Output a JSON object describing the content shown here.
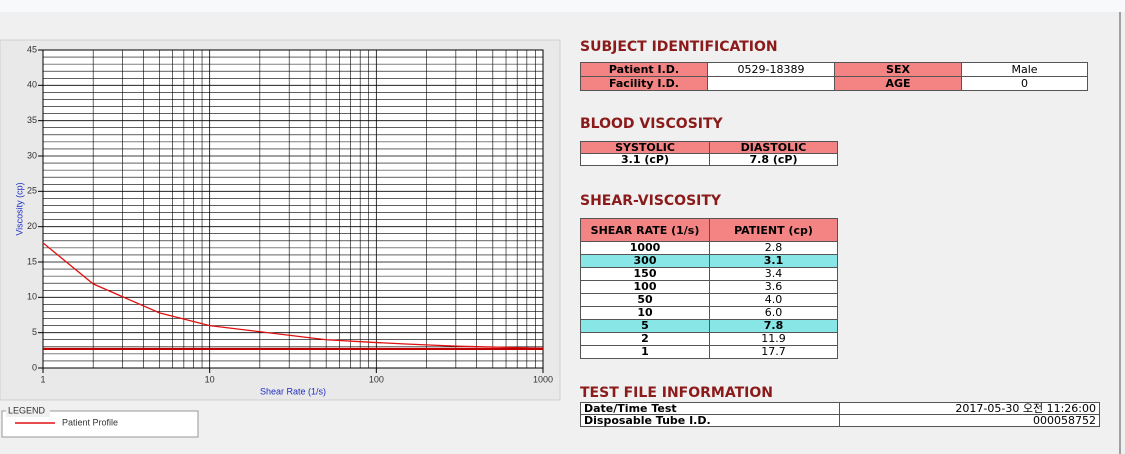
{
  "chart_data": {
    "type": "line",
    "xlabel": "Shear Rate (1/s)",
    "ylabel": "Viscosity (cp)",
    "xlog": true,
    "grid": true,
    "xlim": [
      1,
      1000
    ],
    "xticks": [
      1,
      10,
      100,
      1000
    ],
    "ylim": [
      0,
      45
    ],
    "yticks": [
      0,
      5,
      10,
      15,
      20,
      25,
      30,
      35,
      40,
      45
    ],
    "legend_title": "LEGEND",
    "series": [
      {
        "name": "Patient Profile",
        "color": "#e01010",
        "x": [
          1,
          2,
          5,
          10,
          50,
          100,
          150,
          300,
          1000
        ],
        "values": [
          17.7,
          11.9,
          7.8,
          6.0,
          4.0,
          3.6,
          3.4,
          3.1,
          2.8
        ]
      },
      {
        "color": "#c00000",
        "x": [
          1,
          1000
        ],
        "values": [
          2.7,
          2.7
        ]
      }
    ]
  },
  "subject_identification": {
    "title": "SUBJECT IDENTIFICATION",
    "fields": [
      {
        "label": "Patient I.D.",
        "value": "0529-18389"
      },
      {
        "label": "SEX",
        "value": "Male"
      },
      {
        "label": "Facility I.D."
      },
      {
        "label": "AGE",
        "value": "0"
      }
    ]
  },
  "blood_viscosity": {
    "title": "BLOOD VISCOSITY",
    "headers": [
      "SYSTOLIC",
      "DIASTOLIC"
    ],
    "values": [
      "3.1 (cP)",
      "7.8 (cP)"
    ]
  },
  "shear_viscosity": {
    "title": "SHEAR-VISCOSITY",
    "headers": [
      "SHEAR RATE (1/s)",
      "PATIENT (cp)"
    ],
    "rows": [
      {
        "rate": "1000",
        "value": "2.8"
      },
      {
        "rate": "300",
        "value": "3.1",
        "highlight": true
      },
      {
        "rate": "150",
        "value": "3.4"
      },
      {
        "rate": "100",
        "value": "3.6"
      },
      {
        "rate": "50",
        "value": "4.0"
      },
      {
        "rate": "10",
        "value": "6.0"
      },
      {
        "rate": "5",
        "value": "7.8",
        "highlight": true
      },
      {
        "rate": "2",
        "value": "11.9"
      },
      {
        "rate": "1",
        "value": "17.7"
      }
    ]
  },
  "test_file": {
    "title": "TEST FILE INFORMATION",
    "rows": [
      {
        "label": "Date/Time Test",
        "value": "2017-05-30  오전 11:26:00"
      },
      {
        "label": "Disposable Tube I.D.",
        "value": "000058752"
      }
    ]
  }
}
